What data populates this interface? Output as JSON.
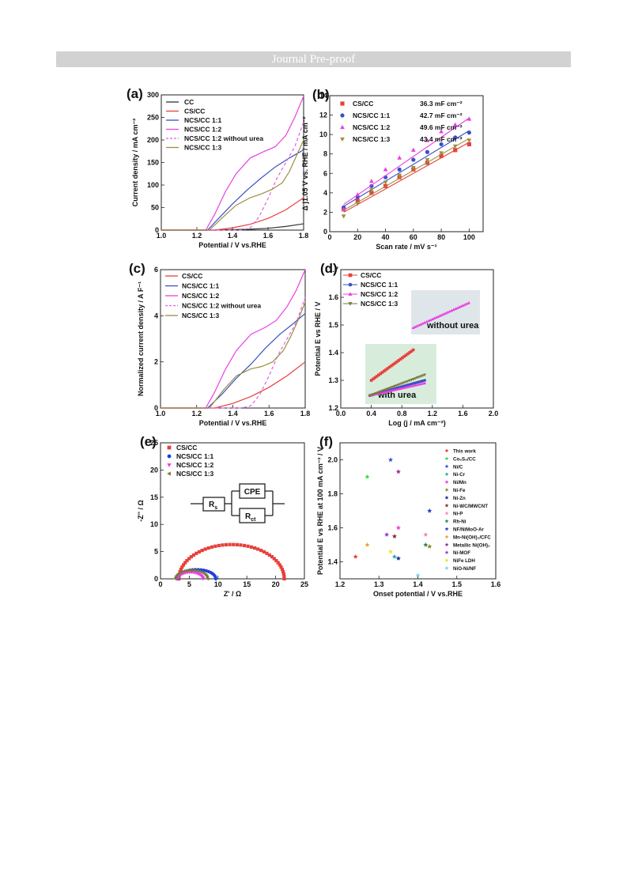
{
  "header": {
    "banner": "Journal Pre-proof"
  },
  "chart_data": [
    {
      "panel": "(a)",
      "type": "line",
      "xlabel": "Potential / V vs.RHE",
      "ylabel": "Current density / mA cm⁻²",
      "xlim": [
        1.0,
        1.8
      ],
      "ylim": [
        0,
        300
      ],
      "xticks": [
        1.0,
        1.2,
        1.4,
        1.6,
        1.8
      ],
      "yticks": [
        0,
        50,
        100,
        150,
        200,
        250,
        300
      ],
      "legend_position": "top-left",
      "series": [
        {
          "name": "CC",
          "color": "#333333",
          "dash": false,
          "x": [
            1.0,
            1.3,
            1.5,
            1.6,
            1.7,
            1.8
          ],
          "y": [
            0,
            0,
            2,
            4,
            8,
            14
          ]
        },
        {
          "name": "CS/CC",
          "color": "#e8403a",
          "dash": false,
          "x": [
            1.0,
            1.3,
            1.4,
            1.5,
            1.6,
            1.7,
            1.8
          ],
          "y": [
            0,
            0,
            5,
            13,
            26,
            45,
            72
          ]
        },
        {
          "name": "NCS/CC 1:1",
          "color": "#3a4fc7",
          "dash": false,
          "x": [
            1.0,
            1.26,
            1.32,
            1.4,
            1.48,
            1.56,
            1.64,
            1.72,
            1.8
          ],
          "y": [
            0,
            0,
            25,
            58,
            88,
            115,
            140,
            160,
            178
          ]
        },
        {
          "name": "NCS/CC 1:2",
          "color": "#e83fe3",
          "dash": false,
          "x": [
            1.0,
            1.25,
            1.3,
            1.36,
            1.42,
            1.5,
            1.58,
            1.64,
            1.7,
            1.75,
            1.8
          ],
          "y": [
            0,
            0,
            35,
            85,
            125,
            160,
            175,
            185,
            210,
            250,
            297
          ]
        },
        {
          "name": "NCS/CC 1:2 without urea",
          "color": "#e060e0",
          "dash": true,
          "x": [
            1.0,
            1.45,
            1.5,
            1.55,
            1.6,
            1.65,
            1.7,
            1.75,
            1.8
          ],
          "y": [
            0,
            0,
            5,
            30,
            70,
            115,
            150,
            185,
            240
          ]
        },
        {
          "name": "NCS/CC 1:3",
          "color": "#9c8f3e",
          "dash": false,
          "x": [
            1.0,
            1.27,
            1.35,
            1.42,
            1.5,
            1.56,
            1.62,
            1.68,
            1.72,
            1.76,
            1.8
          ],
          "y": [
            0,
            0,
            30,
            55,
            72,
            80,
            90,
            105,
            130,
            165,
            200
          ]
        }
      ]
    },
    {
      "panel": "(b)",
      "type": "scatter",
      "xlabel": "Scan rate / mV s⁻¹",
      "ylabel": "Δ j1.05 V vs. RHE / mA cm⁻²",
      "xlim": [
        0,
        110
      ],
      "ylim": [
        0,
        14
      ],
      "xticks": [
        0,
        20,
        40,
        60,
        80,
        100
      ],
      "yticks": [
        0,
        2,
        4,
        6,
        8,
        10,
        12,
        14
      ],
      "legend_position": "top-left",
      "x": [
        10,
        20,
        30,
        40,
        50,
        60,
        70,
        80,
        90,
        100
      ],
      "series": [
        {
          "name": "CS/CC",
          "label": "36.3 mF cm⁻²",
          "color": "#e8403a",
          "marker": "square",
          "y": [
            2.3,
            3.2,
            4.0,
            4.7,
            5.6,
            6.4,
            7.1,
            7.8,
            8.4,
            9.0
          ],
          "fit": [
            2.0,
            9.2
          ]
        },
        {
          "name": "NCS/CC 1:1",
          "label": "42.7 mF cm⁻²",
          "color": "#3a4fc7",
          "marker": "circle",
          "y": [
            2.5,
            3.6,
            4.7,
            5.6,
            6.4,
            7.4,
            8.2,
            9.0,
            9.7,
            10.2
          ],
          "fit": [
            2.6,
            10.4
          ]
        },
        {
          "name": "NCS/CC 1:2",
          "label": "49.6 mF cm⁻²",
          "color": "#e83fe3",
          "marker": "triangle",
          "y": [
            2.3,
            3.8,
            5.2,
            6.4,
            7.6,
            8.4,
            9.4,
            10.3,
            11.0,
            11.6
          ],
          "fit": [
            2.8,
            11.7
          ]
        },
        {
          "name": "NCS/CC 1:3",
          "label": "43.4 mF cm⁻²",
          "color": "#9c8f3e",
          "marker": "triangle-down",
          "y": [
            1.6,
            2.9,
            4.3,
            5.1,
            5.8,
            6.6,
            7.4,
            8.1,
            8.8,
            9.4
          ],
          "fit": [
            2.2,
            9.6
          ]
        }
      ]
    },
    {
      "panel": "(c)",
      "type": "line",
      "xlabel": "Potential / V vs.RHE",
      "ylabel": "Normalized current density / A F⁻¹",
      "xlim": [
        1.0,
        1.8
      ],
      "ylim": [
        0,
        6
      ],
      "xticks": [
        1.0,
        1.2,
        1.4,
        1.6,
        1.8
      ],
      "yticks": [
        0,
        2,
        4,
        6
      ],
      "legend_position": "top-left",
      "series": [
        {
          "name": "CS/CC",
          "color": "#e8403a",
          "dash": false,
          "x": [
            1.0,
            1.3,
            1.4,
            1.5,
            1.6,
            1.7,
            1.8
          ],
          "y": [
            0,
            0,
            0.2,
            0.5,
            0.9,
            1.4,
            2.0
          ]
        },
        {
          "name": "NCS/CC 1:1",
          "color": "#3a4fc7",
          "dash": false,
          "x": [
            1.0,
            1.26,
            1.34,
            1.42,
            1.5,
            1.58,
            1.66,
            1.74,
            1.8
          ],
          "y": [
            0,
            0,
            0.6,
            1.3,
            1.9,
            2.6,
            3.2,
            3.7,
            4.1
          ]
        },
        {
          "name": "NCS/CC 1:2",
          "color": "#e83fe3",
          "dash": false,
          "x": [
            1.0,
            1.25,
            1.3,
            1.36,
            1.42,
            1.5,
            1.58,
            1.64,
            1.7,
            1.75,
            1.8
          ],
          "y": [
            0,
            0,
            0.7,
            1.7,
            2.5,
            3.2,
            3.5,
            3.8,
            4.4,
            5.1,
            6.0
          ]
        },
        {
          "name": "NCS/CC 1:2 without urea",
          "color": "#e060e0",
          "dash": true,
          "x": [
            1.0,
            1.45,
            1.5,
            1.55,
            1.6,
            1.65,
            1.7,
            1.75,
            1.8
          ],
          "y": [
            0,
            0,
            0.1,
            0.6,
            1.4,
            2.3,
            3.0,
            3.7,
            4.8
          ]
        },
        {
          "name": "NCS/CC 1:3",
          "color": "#9c8f3e",
          "dash": false,
          "x": [
            1.0,
            1.27,
            1.35,
            1.42,
            1.5,
            1.56,
            1.62,
            1.68,
            1.72,
            1.76,
            1.8
          ],
          "y": [
            0,
            0,
            0.8,
            1.4,
            1.7,
            1.8,
            2.0,
            2.5,
            3.1,
            3.8,
            4.6
          ]
        }
      ]
    },
    {
      "panel": "(d)",
      "type": "scatter",
      "xlabel": "Log (j / mA cm⁻²)",
      "ylabel": "Potential E vs RHE / V",
      "xlim": [
        0.0,
        2.0
      ],
      "ylim": [
        1.2,
        1.7
      ],
      "xticks": [
        0.0,
        0.4,
        0.8,
        1.2,
        1.6,
        2.0
      ],
      "yticks": [
        1.2,
        1.3,
        1.4,
        1.5,
        1.6,
        1.7
      ],
      "legend_position": "top-left",
      "annotations": [
        "without urea",
        "with urea"
      ],
      "series": [
        {
          "name": "CS/CC",
          "color": "#e8403a",
          "marker": "square",
          "x_range": [
            0.4,
            0.95
          ],
          "y_range": [
            1.3,
            1.41
          ],
          "n": 24
        },
        {
          "name": "NCS/CC 1:1",
          "color": "#3a4fc7",
          "marker": "circle",
          "x_range": [
            0.38,
            1.1
          ],
          "y_range": [
            1.245,
            1.3
          ],
          "n": 30
        },
        {
          "name": "NCS/CC 1:2",
          "color": "#e83fe3",
          "marker": "triangle",
          "x_range": [
            0.38,
            1.1
          ],
          "y_range": [
            1.245,
            1.29
          ],
          "n": 30
        },
        {
          "name": "NCS/CC 1:2 without urea",
          "color": "#e83fe3",
          "marker": "triangle",
          "x_range": [
            0.95,
            1.68
          ],
          "y_range": [
            1.49,
            1.58
          ],
          "n": 30
        },
        {
          "name": "NCS/CC 1:3",
          "color": "#7a7a3a",
          "marker": "triangle-down",
          "x_range": [
            0.38,
            1.1
          ],
          "y_range": [
            1.245,
            1.32
          ],
          "n": 30
        }
      ]
    },
    {
      "panel": "(e)",
      "type": "scatter",
      "xlabel": "Z' / Ω",
      "ylabel": "-Z'' / Ω",
      "xlim": [
        0,
        25
      ],
      "ylim": [
        0,
        25
      ],
      "xticks": [
        0,
        5,
        10,
        15,
        20,
        25
      ],
      "yticks": [
        0,
        5,
        10,
        15,
        20,
        25
      ],
      "legend_position": "top-left",
      "circuit": {
        "labels": [
          "R",
          "CPE",
          "R"
        ],
        "subscripts": [
          "s",
          "",
          "ct"
        ]
      },
      "series": [
        {
          "name": "CS/CC",
          "color": "#e8403a",
          "marker": "square",
          "start": 3.2,
          "end": 21.5,
          "peak": 6.3
        },
        {
          "name": "NCS/CC 1:1",
          "color": "#1f3fe0",
          "marker": "circle",
          "start": 3.0,
          "end": 9.6,
          "peak": 1.7
        },
        {
          "name": "NCS/CC 1:2",
          "color": "#e83fe3",
          "marker": "triangle-down",
          "start": 3.0,
          "end": 7.4,
          "peak": 1.2
        },
        {
          "name": "NCS/CC 1:3",
          "color": "#7a7a3a",
          "marker": "triangle-left",
          "start": 2.6,
          "end": 8.2,
          "peak": 1.6
        }
      ]
    },
    {
      "panel": "(f)",
      "type": "scatter",
      "xlabel": "Onset potential / V vs.RHE",
      "ylabel": "Potential E vs RHE at 100 mA cm⁻² / V",
      "xlim": [
        1.2,
        1.6
      ],
      "ylim": [
        1.3,
        2.1
      ],
      "xticks": [
        1.2,
        1.3,
        1.4,
        1.5,
        1.6
      ],
      "yticks": [
        1.4,
        1.6,
        1.8,
        2.0
      ],
      "legend_position": "right",
      "points": [
        {
          "name": "This work",
          "color": "#e8403a",
          "x": 1.24,
          "y": 1.43
        },
        {
          "name": "Co₉S₈/CC",
          "color": "#3fdc3f",
          "x": 1.27,
          "y": 1.9
        },
        {
          "name": "Ni/C",
          "color": "#3a4fe0",
          "x": 1.33,
          "y": 2.0
        },
        {
          "name": "Ni-Cr",
          "color": "#2aa6b0",
          "x": 1.34,
          "y": 1.43
        },
        {
          "name": "Ni/Mn",
          "color": "#e83fe3",
          "x": 1.35,
          "y": 1.6
        },
        {
          "name": "Ni-Fe",
          "color": "#8a8a2a",
          "x": 1.43,
          "y": 1.49
        },
        {
          "name": "Ni-Zn",
          "color": "#1a2a8a",
          "x": 1.35,
          "y": 1.42
        },
        {
          "name": "Ni-WC/MWCNT",
          "color": "#8a2a2a",
          "x": 1.34,
          "y": 1.55
        },
        {
          "name": "Ni-P",
          "color": "#f08ab0",
          "x": 1.42,
          "y": 1.56
        },
        {
          "name": "Rh-Ni",
          "color": "#2a8a4a",
          "x": 1.42,
          "y": 1.5
        },
        {
          "name": "NF/NiMoO-Ar",
          "color": "#2a3fc0",
          "x": 1.43,
          "y": 1.7
        },
        {
          "name": "Mn-Ni(OH)₂/CFC",
          "color": "#f0a030",
          "x": 1.27,
          "y": 1.5
        },
        {
          "name": "Metallic Ni(OH)₂",
          "color": "#9a2a9a",
          "x": 1.35,
          "y": 1.93
        },
        {
          "name": "Ni-MOF",
          "color": "#8a3ae0",
          "x": 1.32,
          "y": 1.56
        },
        {
          "name": "NiFe LDH",
          "color": "#f0e030",
          "x": 1.33,
          "y": 1.46
        },
        {
          "name": "NiO-Ni/NF",
          "color": "#7ad0e8",
          "x": 1.4,
          "y": 1.32
        }
      ]
    }
  ]
}
